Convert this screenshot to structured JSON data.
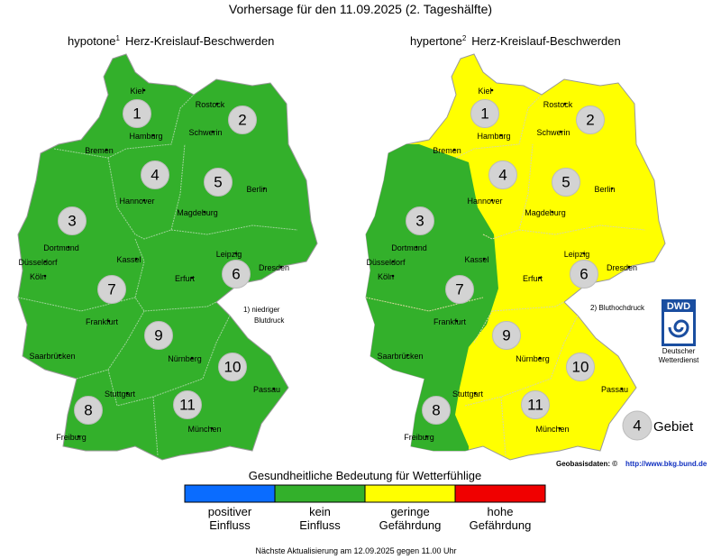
{
  "header": {
    "title": "Vorhersage für den 11.09.2025 (2. Tageshälfte)"
  },
  "maps": [
    {
      "name": "hypotone",
      "note": "1",
      "subtitle": "Herz-Kreislauf-Beschwerden",
      "footnote": [
        "1) niedriger",
        "Blutdruck"
      ]
    },
    {
      "name": "hypertone",
      "note": "2",
      "subtitle": "Herz-Kreislauf-Beschwerden",
      "footnote": [
        "2) Bluthochdruck"
      ]
    }
  ],
  "cities": [
    "Kiel",
    "Rostock",
    "Hamburg",
    "Schwerin",
    "Bremen",
    "Hannover",
    "Berlin",
    "Magdeburg",
    "Dortmund",
    "Düsseldorf",
    "Köln",
    "Kassel",
    "Leipzig",
    "Dresden",
    "Erfurt",
    "Frankfurt",
    "Saarbrücken",
    "Nürnberg",
    "Passau",
    "Stuttgart",
    "München",
    "Freiburg"
  ],
  "regions": [
    1,
    2,
    3,
    4,
    5,
    6,
    7,
    8,
    9,
    10,
    11
  ],
  "logo": {
    "abbr": "DWD",
    "name": [
      "Deutscher",
      "Wetterdienst"
    ]
  },
  "region_legend": {
    "number": 4,
    "label": "Gebiet"
  },
  "source": {
    "label": "Geobasisdaten: ©",
    "link": "http://www.bkg.bund.de"
  },
  "scale": {
    "title": "Gesundheitliche Bedeutung für Wetterfühlige",
    "items": [
      {
        "label": [
          "positiver",
          "Einfluss"
        ],
        "color": "#0a6cff"
      },
      {
        "label": [
          "kein",
          "Einfluss"
        ],
        "color": "#33b02b"
      },
      {
        "label": [
          "geringe",
          "Gefährdung"
        ],
        "color": "#ffff00"
      },
      {
        "label": [
          "hohe",
          "Gefährdung"
        ],
        "color": "#f00000"
      }
    ]
  },
  "footer": "Nächste Aktualisierung am 12.09.2025 gegen 11.00 Uhr"
}
